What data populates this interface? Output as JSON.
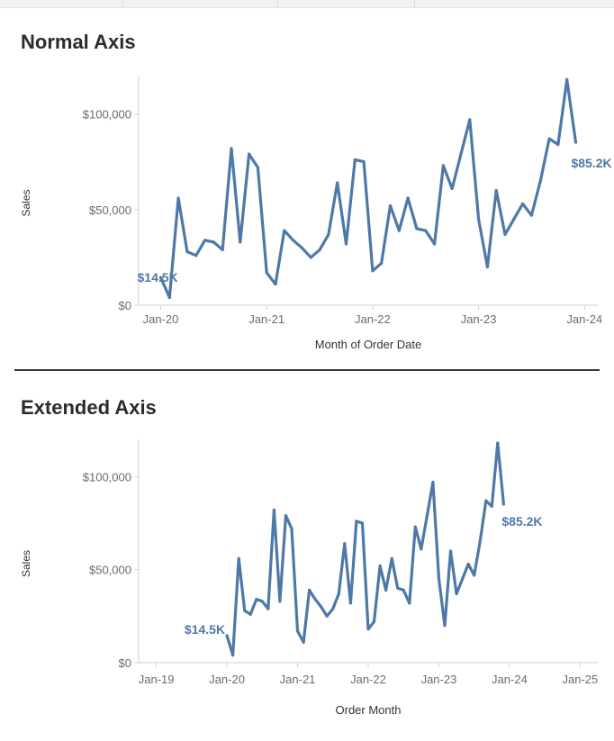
{
  "colors": {
    "line": "#4e79a7",
    "axis": "#cfcfcf",
    "title": "#2b2b2b"
  },
  "chart_data": [
    {
      "type": "line",
      "title": "Normal Axis",
      "xlabel": "Month of Order Date",
      "ylabel": "Sales",
      "yticks": [
        {
          "value": 0,
          "label": "$0"
        },
        {
          "value": 50000,
          "label": "$50,000"
        },
        {
          "value": 100000,
          "label": "$100,000"
        }
      ],
      "xticks": [
        {
          "value": 0,
          "label": "Jan-20"
        },
        {
          "value": 12,
          "label": "Jan-21"
        },
        {
          "value": 24,
          "label": "Jan-22"
        },
        {
          "value": 36,
          "label": "Jan-23"
        },
        {
          "value": 48,
          "label": "Jan-24"
        }
      ],
      "xlim": [
        -2.5,
        49.5
      ],
      "ylim": [
        0,
        120000
      ],
      "series": [
        {
          "name": "Sales",
          "x_start": 0,
          "values": [
            14500,
            4000,
            56000,
            28000,
            26000,
            34000,
            33000,
            29000,
            82000,
            33000,
            79000,
            72000,
            17000,
            11000,
            39000,
            34000,
            30000,
            25000,
            29000,
            37000,
            64000,
            32000,
            76000,
            75000,
            18000,
            22000,
            52000,
            39000,
            56000,
            40000,
            39000,
            32000,
            73000,
            61000,
            79000,
            97000,
            45000,
            20000,
            60000,
            37000,
            45000,
            53000,
            47000,
            65000,
            87000,
            84000,
            118000,
            85200
          ]
        }
      ],
      "annotations": [
        {
          "x": 0,
          "label": "$14.5K",
          "position": "left"
        },
        {
          "x": 47,
          "label": "$85.2K",
          "position": "right"
        }
      ]
    },
    {
      "type": "line",
      "title": "Extended Axis",
      "xlabel": "Order Month",
      "ylabel": "Sales",
      "yticks": [
        {
          "value": 0,
          "label": "$0"
        },
        {
          "value": 50000,
          "label": "$50,000"
        },
        {
          "value": 100000,
          "label": "$100,000"
        }
      ],
      "xticks": [
        {
          "value": -12,
          "label": "Jan-19"
        },
        {
          "value": 0,
          "label": "Jan-20"
        },
        {
          "value": 12,
          "label": "Jan-21"
        },
        {
          "value": 24,
          "label": "Jan-22"
        },
        {
          "value": 36,
          "label": "Jan-23"
        },
        {
          "value": 48,
          "label": "Jan-24"
        },
        {
          "value": 60,
          "label": "Jan-25"
        }
      ],
      "xlim": [
        -15,
        63
      ],
      "ylim": [
        0,
        120000
      ],
      "series": [
        {
          "name": "Sales",
          "x_start": 0,
          "values": [
            14500,
            4000,
            56000,
            28000,
            26000,
            34000,
            33000,
            29000,
            82000,
            33000,
            79000,
            72000,
            17000,
            11000,
            39000,
            34000,
            30000,
            25000,
            29000,
            37000,
            64000,
            32000,
            76000,
            75000,
            18000,
            22000,
            52000,
            39000,
            56000,
            40000,
            39000,
            32000,
            73000,
            61000,
            79000,
            97000,
            45000,
            20000,
            60000,
            37000,
            45000,
            53000,
            47000,
            65000,
            87000,
            84000,
            118000,
            85200
          ]
        }
      ],
      "annotations": [
        {
          "x": 0,
          "label": "$14.5K",
          "position": "left"
        },
        {
          "x": 47,
          "label": "$85.2K",
          "position": "right"
        }
      ]
    }
  ]
}
